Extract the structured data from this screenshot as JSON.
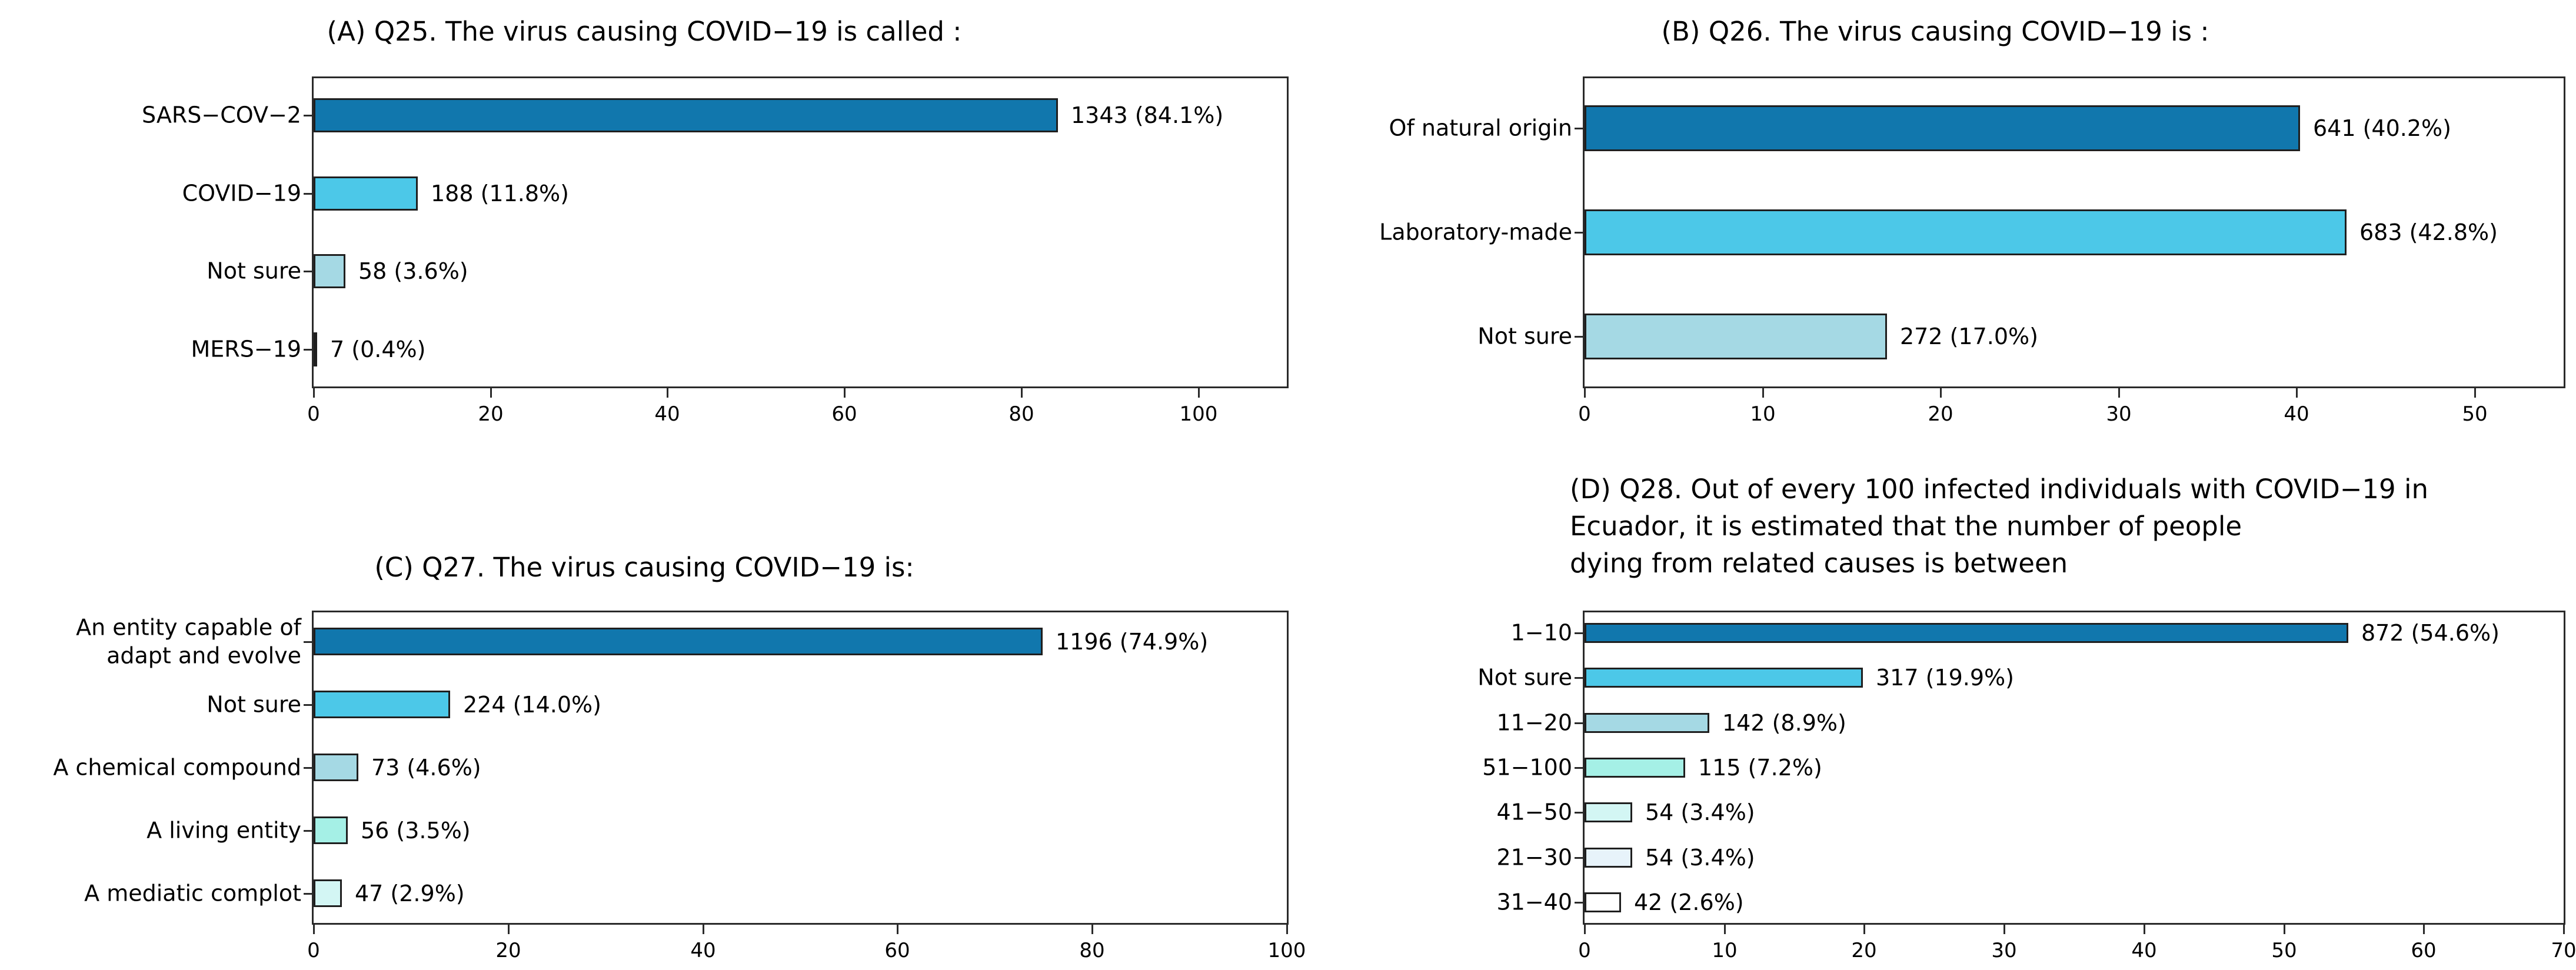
{
  "figure": {
    "background": "#ffffff",
    "bar_border_color": "#1f1f1f",
    "axis_color": "#2a2a2a",
    "text_color": "#000000",
    "row_palette": [
      "#1177ad",
      "#4cc8e8",
      "#a5d9e4",
      "#a5f0e6",
      "#d3f6f4",
      "#e7f3fa",
      "#ffffff"
    ]
  },
  "chart_data": [
    {
      "id": "A",
      "type": "bar",
      "orientation": "horizontal",
      "title": "(A) Q25. The virus causing COVID−19 is called :",
      "categories": [
        "SARS−COV−2",
        "COVID−19",
        "Not sure",
        "MERS−19"
      ],
      "counts": [
        1343,
        188,
        58,
        7
      ],
      "percents": [
        84.1,
        11.8,
        3.6,
        0.4
      ],
      "value_labels": [
        "1343 (84.1%)",
        "188 (11.8%)",
        "58 (3.6%)",
        "7 (0.4%)"
      ],
      "xlim": [
        0,
        110
      ],
      "xticks": [
        0,
        20,
        40,
        60,
        80,
        100
      ],
      "grid": false,
      "legend": "none"
    },
    {
      "id": "B",
      "type": "bar",
      "orientation": "horizontal",
      "title": "(B) Q26. The virus causing COVID−19 is :",
      "categories": [
        "Of natural origin",
        "Laboratory-made",
        "Not sure"
      ],
      "counts": [
        641,
        683,
        272
      ],
      "percents": [
        40.2,
        42.8,
        17.0
      ],
      "value_labels": [
        "641 (40.2%)",
        "683 (42.8%)",
        "272 (17.0%)"
      ],
      "xlim": [
        0,
        55
      ],
      "xticks": [
        0,
        10,
        20,
        30,
        40,
        50
      ],
      "grid": false,
      "legend": "none"
    },
    {
      "id": "C",
      "type": "bar",
      "orientation": "horizontal",
      "title": "(C) Q27. The virus causing COVID−19 is:",
      "categories": [
        "An entity capable of\nadapt and evolve",
        "Not sure",
        "A chemical compound",
        "A living entity",
        "A mediatic complot"
      ],
      "counts": [
        1196,
        224,
        73,
        56,
        47
      ],
      "percents": [
        74.9,
        14.0,
        4.6,
        3.5,
        2.9
      ],
      "value_labels": [
        "1196 (74.9%)",
        "224 (14.0%)",
        "73 (4.6%)",
        "56 (3.5%)",
        "47 (2.9%)"
      ],
      "xlim": [
        0,
        100
      ],
      "xticks": [
        0,
        20,
        40,
        60,
        80,
        100
      ],
      "grid": false,
      "legend": "none"
    },
    {
      "id": "D",
      "type": "bar",
      "orientation": "horizontal",
      "title": "(D) Q28. Out of every 100 infected individuals with COVID−19 in\nEcuador, it is estimated that the number of people\ndying from related causes is between",
      "categories": [
        "1−10",
        "Not sure",
        "11−20",
        "51−100",
        "41−50",
        "21−30",
        "31−40"
      ],
      "counts": [
        872,
        317,
        142,
        115,
        54,
        54,
        42
      ],
      "percents": [
        54.6,
        19.9,
        8.9,
        7.2,
        3.4,
        3.4,
        2.6
      ],
      "value_labels": [
        "872 (54.6%)",
        "317 (19.9%)",
        "142 (8.9%)",
        "115 (7.2%)",
        "54 (3.4%)",
        "54 (3.4%)",
        "42 (2.6%)"
      ],
      "xlim": [
        0,
        70
      ],
      "xticks": [
        0,
        10,
        20,
        30,
        40,
        50,
        60,
        70
      ],
      "grid": false,
      "legend": "none"
    }
  ]
}
